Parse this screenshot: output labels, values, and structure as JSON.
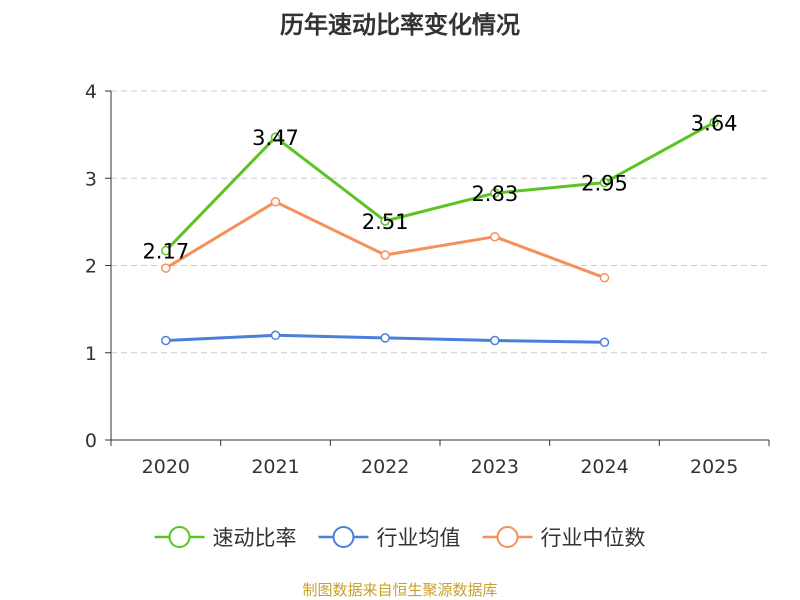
{
  "chart_data": {
    "type": "line",
    "title": "历年速动比率变化情况",
    "categories": [
      "2020",
      "2021",
      "2022",
      "2023",
      "2024",
      "2025"
    ],
    "ylim": [
      0,
      4
    ],
    "yticks": [
      "0",
      "1",
      "2",
      "3",
      "4"
    ],
    "grid": true,
    "legend_position": "bottom",
    "series": [
      {
        "name": "速动比率",
        "color": "#5cc422",
        "values": [
          2.17,
          3.47,
          2.51,
          2.83,
          2.95,
          3.64
        ],
        "labels": [
          "2.17",
          "3.47",
          "2.51",
          "2.83",
          "2.95",
          "3.64"
        ]
      },
      {
        "name": "行业均值",
        "color": "#4a7fdc",
        "values": [
          1.14,
          1.2,
          1.17,
          1.14,
          1.12,
          null
        ]
      },
      {
        "name": "行业中位数",
        "color": "#f5905a",
        "values": [
          1.97,
          2.73,
          2.12,
          2.33,
          1.86,
          null
        ]
      }
    ],
    "source": "制图数据来自恒生聚源数据库"
  }
}
